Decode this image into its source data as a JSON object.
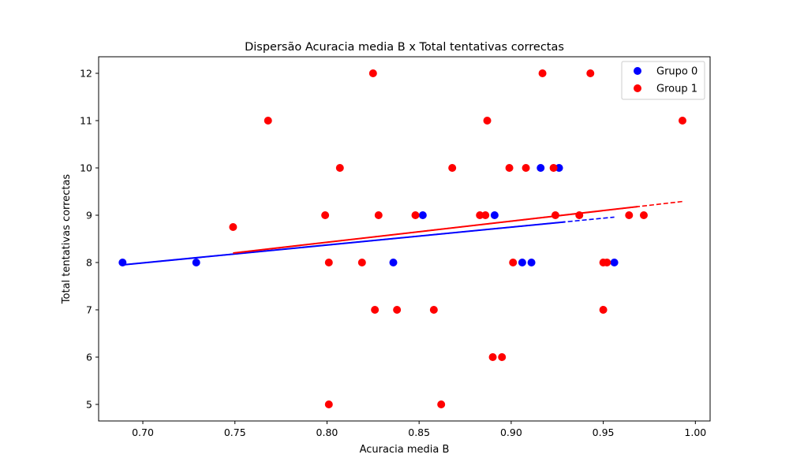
{
  "chart_data": {
    "type": "scatter",
    "title": "Dispersão Acuracia media B x Total tentativas correctas",
    "xlabel": "Acuracia media B",
    "ylabel": "Total tentativas correctas",
    "xlim": [
      0.676,
      1.008
    ],
    "ylim": [
      4.65,
      12.35
    ],
    "xticks": [
      0.7,
      0.75,
      0.8,
      0.85,
      0.9,
      0.95,
      1.0
    ],
    "xtick_labels": [
      "0.70",
      "0.75",
      "0.80",
      "0.85",
      "0.90",
      "0.95",
      "1.00"
    ],
    "yticks": [
      5,
      6,
      7,
      8,
      9,
      10,
      11,
      12
    ],
    "ytick_labels": [
      "5",
      "6",
      "7",
      "8",
      "9",
      "10",
      "11",
      "12"
    ],
    "grid": false,
    "legend_position": "top-right",
    "series": [
      {
        "name": "Grupo 0",
        "color": "#0000ff",
        "points": [
          [
            0.689,
            8
          ],
          [
            0.729,
            8
          ],
          [
            0.836,
            8
          ],
          [
            0.852,
            9
          ],
          [
            0.891,
            9
          ],
          [
            0.906,
            8
          ],
          [
            0.911,
            8
          ],
          [
            0.916,
            10
          ],
          [
            0.926,
            10
          ],
          [
            0.956,
            8
          ]
        ],
        "trend": {
          "x_range": [
            0.689,
            0.956
          ],
          "y_range": [
            7.95,
            8.96
          ]
        }
      },
      {
        "name": "Group 1",
        "color": "#ff0000",
        "points": [
          [
            0.749,
            8.75
          ],
          [
            0.768,
            11
          ],
          [
            0.799,
            9
          ],
          [
            0.801,
            8
          ],
          [
            0.801,
            5
          ],
          [
            0.807,
            10
          ],
          [
            0.819,
            8
          ],
          [
            0.825,
            12
          ],
          [
            0.826,
            7
          ],
          [
            0.828,
            9
          ],
          [
            0.838,
            7
          ],
          [
            0.848,
            9
          ],
          [
            0.858,
            7
          ],
          [
            0.862,
            5
          ],
          [
            0.868,
            10
          ],
          [
            0.883,
            9
          ],
          [
            0.886,
            9
          ],
          [
            0.887,
            11
          ],
          [
            0.89,
            6
          ],
          [
            0.895,
            6
          ],
          [
            0.899,
            10
          ],
          [
            0.901,
            8
          ],
          [
            0.908,
            10
          ],
          [
            0.917,
            12
          ],
          [
            0.923,
            10
          ],
          [
            0.924,
            9
          ],
          [
            0.937,
            9
          ],
          [
            0.943,
            12
          ],
          [
            0.95,
            8
          ],
          [
            0.95,
            7
          ],
          [
            0.952,
            8
          ],
          [
            0.964,
            9
          ],
          [
            0.972,
            9
          ],
          [
            0.993,
            11
          ]
        ],
        "trend": {
          "x_range": [
            0.749,
            0.993
          ],
          "y_range": [
            8.2,
            9.29
          ]
        }
      }
    ]
  }
}
